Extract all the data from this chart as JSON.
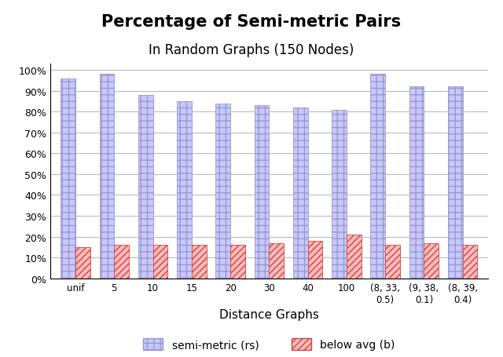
{
  "title_line1": "Percentage of Semi-metric Pairs",
  "title_line2": "In Random Graphs (150 Nodes)",
  "xlabel": "Distance Graphs",
  "categories": [
    "unif",
    "5",
    "10",
    "15",
    "20",
    "30",
    "40",
    "100",
    "(8, 33,\n0.5)",
    "(9, 38,\n0.1)",
    "(8, 39,\n0.4)"
  ],
  "semi_metric": [
    96,
    98,
    88,
    85,
    84,
    83,
    82,
    81,
    98,
    92,
    92
  ],
  "below_avg": [
    15,
    16,
    16,
    16,
    16,
    17,
    18,
    21,
    16,
    17,
    16
  ],
  "semi_metric_facecolor": "#c8c8ff",
  "semi_metric_edgecolor": "#9999cc",
  "semi_metric_hatch": "++",
  "below_avg_facecolor": "#ffbbbb",
  "below_avg_edgecolor": "#cc4444",
  "below_avg_hatch": "////",
  "legend_semi_metric": "semi-metric (rs)",
  "legend_below_avg": "below avg (b)",
  "ylim": [
    0,
    103
  ],
  "yticks": [
    0,
    10,
    20,
    30,
    40,
    50,
    60,
    70,
    80,
    90,
    100
  ],
  "ytick_labels": [
    "0%",
    "10%",
    "20%",
    "30%",
    "40%",
    "50%",
    "60%",
    "70%",
    "80%",
    "90%",
    "100%"
  ],
  "bar_width": 0.38,
  "figsize": [
    6.4,
    4.56
  ],
  "dpi": 100,
  "bg_color": "#f0f0f0"
}
